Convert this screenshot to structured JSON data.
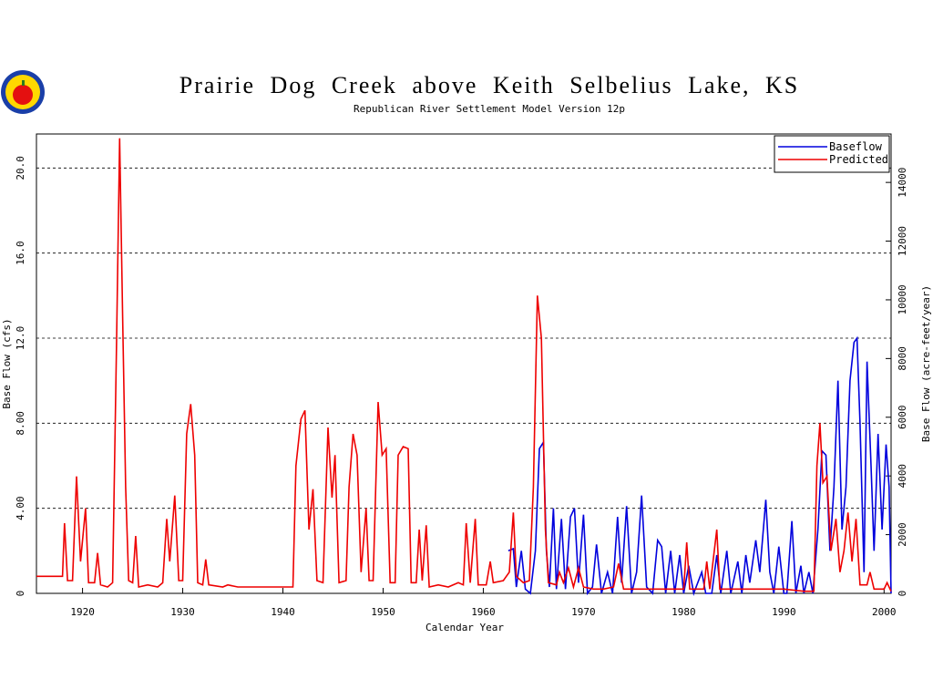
{
  "chart_data": {
    "type": "line",
    "title": "Prairie Dog Creek above Keith Selbelius Lake, KS",
    "subtitle": "Republican River Settlement Model Version 12p",
    "x_label": "Calendar Year",
    "y_label": "Base Flow (cfs)",
    "y2_label": "Base Flow (acre-feet/year)",
    "xlim": [
      1915.4,
      2000.7
    ],
    "xticks": [
      1920,
      1930,
      1940,
      1950,
      1960,
      1970,
      1980,
      1990,
      2000
    ],
    "ylim": [
      0,
      21.6
    ],
    "yticks": [
      0,
      {
        "value": 4,
        "label": "4.00"
      },
      {
        "value": 8,
        "label": "8.00"
      },
      {
        "value": 12,
        "label": "12.0"
      },
      {
        "value": 16,
        "label": "16.0"
      },
      {
        "value": 20,
        "label": "20.0"
      }
    ],
    "y2lim": [
      0,
      15650
    ],
    "y2ticks": [
      0,
      2000,
      4000,
      6000,
      8000,
      10000,
      12000,
      14000
    ],
    "grid": true,
    "legend": "upper right",
    "series": [
      {
        "name": "Baseflow",
        "color": "#0000dd",
        "x": [
          1962.5,
          1963.0,
          1963.3,
          1963.8,
          1964.2,
          1964.7,
          1965.2,
          1965.6,
          1966.0,
          1966.3,
          1966.6,
          1967.0,
          1967.3,
          1967.8,
          1968.2,
          1968.7,
          1969.1,
          1969.5,
          1970.0,
          1970.4,
          1970.9,
          1971.3,
          1971.8,
          1972.4,
          1972.9,
          1973.4,
          1973.8,
          1974.3,
          1974.8,
          1975.3,
          1975.8,
          1976.3,
          1976.9,
          1977.4,
          1977.8,
          1978.2,
          1978.7,
          1979.1,
          1979.6,
          1980.0,
          1980.5,
          1981.0,
          1981.8,
          1982.2,
          1982.8,
          1983.3,
          1983.7,
          1984.3,
          1984.7,
          1985.4,
          1985.8,
          1986.2,
          1986.6,
          1987.2,
          1987.6,
          1988.2,
          1988.6,
          1989.0,
          1989.5,
          1990.0,
          1990.3,
          1990.8,
          1991.2,
          1991.7,
          1992.0,
          1992.5,
          1992.9,
          1993.4,
          1993.8,
          1994.2,
          1994.6,
          1995.0,
          1995.4,
          1995.8,
          1996.2,
          1996.6,
          1997.0,
          1997.3,
          1997.6,
          1998.0,
          1998.3,
          1998.7,
          1999.0,
          1999.4,
          1999.8,
          2000.2,
          2000.5,
          2000.7
        ],
        "values": [
          2.0,
          2.1,
          0.3,
          2.0,
          0.2,
          0,
          2,
          6.8,
          7.1,
          2,
          0.3,
          4.0,
          0.2,
          3.5,
          0.2,
          3.6,
          4.0,
          0.5,
          3.7,
          0,
          0.3,
          2.3,
          0,
          1,
          0,
          3.6,
          0.5,
          4.1,
          0,
          1,
          4.6,
          0.3,
          0,
          2.5,
          2.2,
          0,
          2.0,
          0,
          1.8,
          0,
          1.3,
          0,
          1,
          0,
          0,
          1.8,
          0,
          2.0,
          0,
          1.5,
          0,
          1.8,
          0.5,
          2.5,
          1,
          4.4,
          1.0,
          0,
          2.2,
          0,
          0,
          3.4,
          0,
          1.3,
          0,
          1,
          0,
          3,
          6.7,
          6.5,
          2,
          5,
          10,
          3,
          5,
          10,
          11.8,
          12.0,
          8,
          1,
          10.9,
          6,
          2,
          7.5,
          3,
          7.0,
          5,
          0
        ]
      },
      {
        "name": "Predicted",
        "color": "#ee0000",
        "x": [
          1915.4,
          1918.0,
          1918.2,
          1918.5,
          1919.0,
          1919.4,
          1919.8,
          1920.3,
          1920.6,
          1921.2,
          1921.5,
          1921.8,
          1922.5,
          1923.0,
          1923.4,
          1923.7,
          1924.0,
          1924.3,
          1924.6,
          1925.0,
          1925.3,
          1925.6,
          1926.5,
          1927.5,
          1928.0,
          1928.4,
          1928.7,
          1929.2,
          1929.6,
          1930.0,
          1930.4,
          1930.8,
          1931.2,
          1931.5,
          1932.0,
          1932.3,
          1932.6,
          1934.0,
          1934.5,
          1935.5,
          1937.0,
          1938.0,
          1940.0,
          1941.0,
          1941.3,
          1941.8,
          1942.2,
          1942.6,
          1943.0,
          1943.4,
          1944.0,
          1944.5,
          1944.9,
          1945.2,
          1945.6,
          1946.3,
          1946.6,
          1947.0,
          1947.4,
          1947.8,
          1948.3,
          1948.6,
          1949.0,
          1949.5,
          1949.9,
          1950.3,
          1950.7,
          1951.2,
          1951.5,
          1952.0,
          1952.5,
          1952.8,
          1953.3,
          1953.6,
          1953.9,
          1954.3,
          1954.6,
          1955.5,
          1956.5,
          1957.5,
          1958.0,
          1958.3,
          1958.7,
          1959.2,
          1959.5,
          1960.3,
          1960.7,
          1961.0,
          1962.0,
          1962.6,
          1963.0,
          1963.3,
          1964.0,
          1964.6,
          1965.0,
          1965.4,
          1965.8,
          1966.2,
          1966.5,
          1967.3,
          1967.6,
          1968.0,
          1968.5,
          1969.0,
          1969.5,
          1970.0,
          1971.0,
          1972.0,
          1973.0,
          1973.5,
          1974.0,
          1975.0,
          1976.0,
          1977.0,
          1978.0,
          1979.0,
          1980.0,
          1980.3,
          1980.6,
          1982.0,
          1982.3,
          1982.6,
          1983.3,
          1983.6,
          1985.0,
          1986.0,
          1988.0,
          1990.0,
          1992.0,
          1993.0,
          1993.3,
          1993.6,
          1993.9,
          1994.3,
          1994.7,
          1995.2,
          1995.6,
          1996.0,
          1996.4,
          1996.8,
          1997.2,
          1997.6,
          1998.3,
          1998.6,
          1999.0,
          2000.0,
          2000.3,
          2000.7
        ],
        "values": [
          0.8,
          0.8,
          3.3,
          0.6,
          0.6,
          5.5,
          1.5,
          4.0,
          0.5,
          0.5,
          1.9,
          0.4,
          0.3,
          0.5,
          12,
          21.4,
          13,
          5,
          0.6,
          0.5,
          2.7,
          0.3,
          0.4,
          0.3,
          0.5,
          3.5,
          1.5,
          4.6,
          0.6,
          0.6,
          7.5,
          8.9,
          6.5,
          0.5,
          0.4,
          1.6,
          0.4,
          0.3,
          0.4,
          0.3,
          0.3,
          0.3,
          0.3,
          0.3,
          6,
          8.2,
          8.6,
          3,
          4.9,
          0.6,
          0.5,
          7.8,
          4.5,
          6.5,
          0.5,
          0.6,
          5,
          7.5,
          6.5,
          1,
          4,
          0.6,
          0.6,
          9.0,
          6.5,
          6.8,
          0.5,
          0.5,
          6.5,
          6.9,
          6.8,
          0.5,
          0.5,
          3.0,
          0.6,
          3.2,
          0.3,
          0.4,
          0.3,
          0.5,
          0.4,
          3.3,
          0.5,
          3.5,
          0.4,
          0.4,
          1.5,
          0.5,
          0.6,
          1.0,
          3.8,
          0.8,
          0.5,
          0.6,
          5,
          14,
          12,
          3,
          0.5,
          0.4,
          1.0,
          0.5,
          1.2,
          0.3,
          1.2,
          0.3,
          0.2,
          0.2,
          0.3,
          1.4,
          0.2,
          0.2,
          0.2,
          0.2,
          0.2,
          0.2,
          0.2,
          2.4,
          0.2,
          0.2,
          1.5,
          0.2,
          3,
          0.2,
          0.2,
          0.2,
          0.2,
          0.2,
          0.1,
          0.1,
          6,
          8.0,
          5.2,
          5.5,
          2,
          3.5,
          1,
          2,
          3.8,
          1.5,
          3.5,
          0.4,
          0.4,
          1,
          0.2,
          0.2,
          0.5,
          0.1
        ]
      }
    ]
  }
}
